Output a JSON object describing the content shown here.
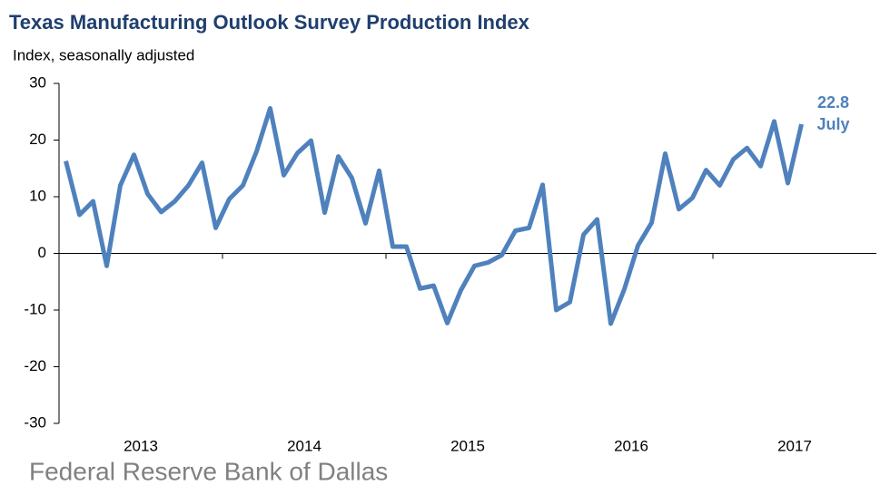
{
  "chart_data": {
    "type": "line",
    "title": "Texas Manufacturing Outlook Survey Production Index",
    "subtitle": "Index, seasonally adjusted",
    "source": "Federal Reserve Bank of Dallas",
    "categories": [
      "2013",
      null,
      null,
      null,
      null,
      null,
      null,
      null,
      null,
      null,
      null,
      null,
      "2014",
      null,
      null,
      null,
      null,
      null,
      null,
      null,
      null,
      null,
      null,
      null,
      "2015",
      null,
      null,
      null,
      null,
      null,
      null,
      null,
      null,
      null,
      null,
      null,
      "2016",
      null,
      null,
      null,
      null,
      null,
      null,
      null,
      null,
      null,
      null,
      null,
      "2017",
      null,
      null,
      null,
      null,
      null,
      null
    ],
    "series": [
      {
        "name": "Production Index",
        "color": "#4f81bd",
        "values": [
          16.3,
          6.8,
          9.2,
          -2.2,
          12,
          17.4,
          10.5,
          7.3,
          9.2,
          12,
          16,
          4.5,
          9.6,
          12,
          18,
          25.6,
          13.8,
          17.7,
          19.9,
          7.2,
          17.1,
          13.3,
          5.3,
          14.6,
          1.2,
          1.2,
          -6.2,
          -5.7,
          -12.3,
          -6.5,
          -2.2,
          -1.6,
          -0.3,
          4,
          4.5,
          12.1,
          -10,
          -8.6,
          3.3,
          6,
          -12.4,
          -6.3,
          1.4,
          5.4,
          17.6,
          7.8,
          9.8,
          14.7,
          12,
          16.6,
          18.6,
          15.4,
          23.3,
          12.4,
          22.8
        ]
      }
    ],
    "annotation": "July",
    "label_last": true,
    "ylim": [
      -30,
      30
    ],
    "yticks": [
      -30,
      -20,
      -10,
      0,
      10,
      20,
      30
    ],
    "grid": false
  }
}
